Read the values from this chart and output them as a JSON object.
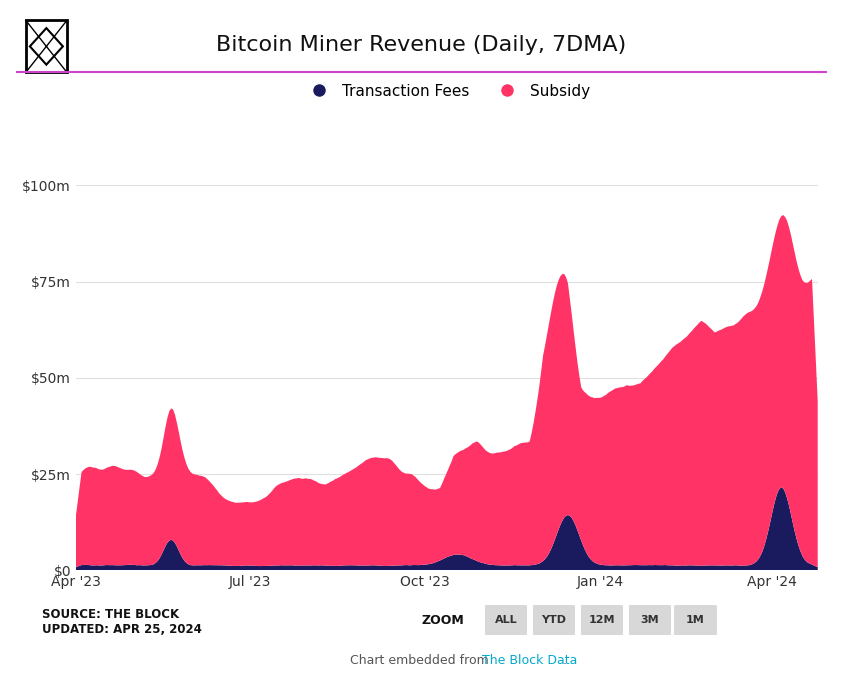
{
  "title": "Bitcoin Miner Revenue (Daily, 7DMA)",
  "subsidy_color": "#FF3366",
  "fees_color": "#1a1a5e",
  "background_color": "#ffffff",
  "ylim": [
    0,
    100000000
  ],
  "yticks": [
    0,
    25000000,
    50000000,
    75000000,
    100000000
  ],
  "ytick_labels": [
    "$0",
    "$25m",
    "$50m",
    "$75m",
    "$100m"
  ],
  "header_line_color": "#cc44cc",
  "source_text": "SOURCE: THE BLOCK\nUPDATED: APR 25, 2024",
  "footer_text": "Chart embedded from ",
  "footer_link": "The Block Data",
  "footer_period": ".",
  "zoom_label": "ZOOM",
  "zoom_buttons": [
    "ALL",
    "YTD",
    "12M",
    "3M",
    "1M"
  ],
  "legend_fees": "Transaction Fees",
  "legend_subsidy": "Subsidy",
  "x_tick_labels": [
    "Apr '23",
    "Jul '23",
    "Oct '23",
    "Jan '24",
    "Apr '24"
  ],
  "x_tick_positions": [
    0,
    91,
    183,
    275,
    365
  ],
  "n_points": 390
}
